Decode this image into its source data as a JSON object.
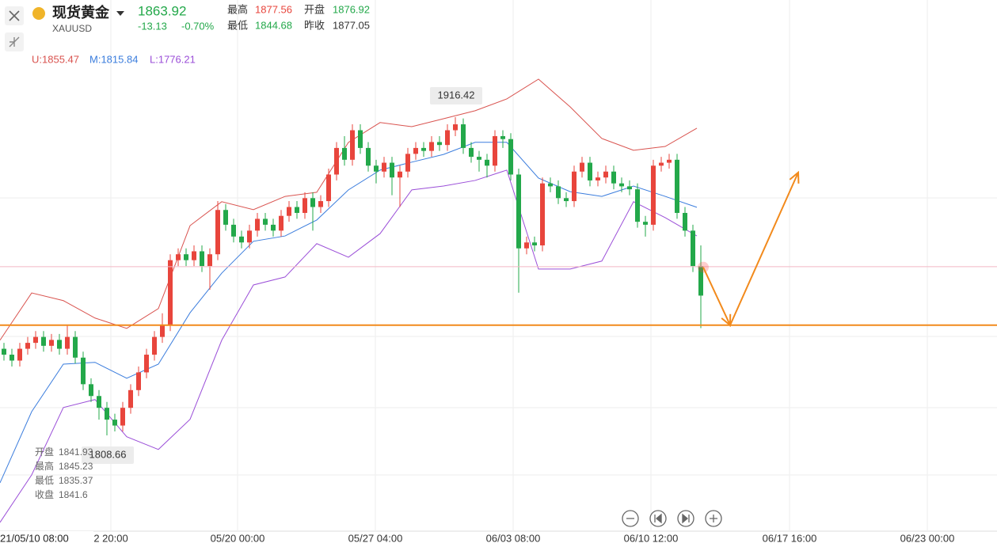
{
  "header": {
    "title": "现货黄金",
    "symbol": "XAUUSD",
    "price": 1863.92,
    "change": -13.13,
    "change_pct": {
      "value": -0.7,
      "label": "-0.70%"
    },
    "stats": [
      {
        "label": "最高",
        "value": 1877.56
      },
      {
        "label": "开盘",
        "value": 1876.92
      },
      {
        "label": "最低",
        "value": 1844.68
      },
      {
        "label": "昨收",
        "value": 1877.05
      }
    ]
  },
  "tooltip": [
    {
      "label": "开盘",
      "value": 1841.93
    },
    {
      "label": "最高",
      "value": 1845.23
    },
    {
      "label": "最低",
      "value": 1835.37
    },
    {
      "label": "收盘",
      "value": 1841.6
    }
  ],
  "chart_data": {
    "type": "candlestick",
    "up_color": "#e8453c",
    "down_color": "#23a84a",
    "xlim": [
      0,
      125.9
    ],
    "ylim": [
      1776.5,
      1956.1
    ],
    "crosshair_time": "21/05/10 08:00",
    "xticks": [
      {
        "value": 14,
        "label": "2 20:00"
      },
      {
        "value": 30,
        "label": "05/20 00:00"
      },
      {
        "value": 47.4,
        "label": "05/27 04:00"
      },
      {
        "value": 64.8,
        "label": "06/03 08:00"
      },
      {
        "value": 82.2,
        "label": "06/10 12:00"
      },
      {
        "value": 99.7,
        "label": "06/17 16:00"
      },
      {
        "value": 117.1,
        "label": "06/23 00:00"
      }
    ],
    "open": [
      1838,
      1836,
      1834,
      1838,
      1840,
      1842,
      1839,
      1841,
      1838,
      1842,
      1835,
      1826,
      1822,
      1818,
      1814,
      1812,
      1818,
      1824,
      1830,
      1836,
      1842,
      1846,
      1868,
      1870,
      1868,
      1871,
      1866,
      1870,
      1885,
      1880,
      1876,
      1874,
      1878,
      1882,
      1880,
      1878,
      1883,
      1886,
      1884,
      1889,
      1886,
      1888,
      1897,
      1906,
      1902,
      1912,
      1906,
      1900,
      1898,
      1901,
      1896,
      1898,
      1904,
      1906,
      1905,
      1908,
      1907,
      1912,
      1914,
      1906,
      1903,
      1902,
      1900,
      1910,
      1909,
      1897,
      1872,
      1874,
      1873,
      1894,
      1893,
      1889,
      1888,
      1898,
      1901,
      1895,
      1896,
      1898,
      1894,
      1893,
      1892,
      1881,
      1880,
      1900,
      1901,
      1902,
      1884,
      1878,
      1866
    ],
    "high": [
      1840,
      1838,
      1840,
      1842,
      1844,
      1844,
      1843,
      1843,
      1846,
      1844,
      1837,
      1828,
      1824,
      1820,
      1816,
      1820,
      1826,
      1832,
      1838,
      1844,
      1850,
      1870,
      1872,
      1872,
      1873,
      1873,
      1872,
      1888,
      1887,
      1882,
      1878,
      1880,
      1884,
      1884,
      1882,
      1885,
      1888,
      1888,
      1891,
      1891,
      1890,
      1899,
      1908,
      1910,
      1914,
      1914,
      1908,
      1902,
      1903,
      1903,
      1900,
      1906,
      1908,
      1908,
      1910,
      1910,
      1914,
      1916.42,
      1916,
      1908,
      1905,
      1904,
      1912,
      1912,
      1911,
      1899,
      1876,
      1876,
      1896,
      1896,
      1895,
      1891,
      1900,
      1903,
      1903,
      1898,
      1900,
      1900,
      1896,
      1895,
      1894,
      1883,
      1902,
      1903,
      1904,
      1904,
      1886,
      1880,
      1873
    ],
    "low": [
      1834,
      1832,
      1832,
      1836,
      1838,
      1837,
      1837,
      1836,
      1836,
      1833,
      1824,
      1820,
      1814,
      1808.66,
      1810,
      1810,
      1816,
      1822,
      1828,
      1834,
      1840,
      1844,
      1866,
      1866,
      1866,
      1864,
      1858,
      1868,
      1878,
      1874,
      1872,
      1872,
      1876,
      1878,
      1876,
      1876,
      1881,
      1882,
      1882,
      1878,
      1884,
      1886,
      1895,
      1900,
      1900,
      1904,
      1898,
      1894,
      1896,
      1890,
      1886,
      1896,
      1902,
      1903,
      1903,
      1905,
      1905,
      1910,
      1904,
      1901,
      1898,
      1896,
      1898,
      1906,
      1895,
      1857,
      1870,
      1871,
      1871,
      1891,
      1887,
      1886,
      1886,
      1896,
      1893,
      1893,
      1894,
      1892,
      1891,
      1890,
      1879,
      1876,
      1878,
      1898,
      1899,
      1882,
      1876,
      1864,
      1845
    ],
    "close": [
      1836,
      1834,
      1838,
      1840,
      1842,
      1839,
      1841,
      1838,
      1842,
      1835,
      1826,
      1822,
      1818,
      1814,
      1812,
      1818,
      1824,
      1830,
      1836,
      1842,
      1846,
      1868,
      1870,
      1868,
      1871,
      1866,
      1870,
      1885,
      1880,
      1876,
      1874,
      1878,
      1882,
      1880,
      1878,
      1883,
      1886,
      1884,
      1889,
      1886,
      1888,
      1897,
      1906,
      1902,
      1912,
      1906,
      1900,
      1898,
      1901,
      1896,
      1898,
      1904,
      1906,
      1905,
      1908,
      1907,
      1912,
      1914,
      1906,
      1903,
      1902,
      1900,
      1910,
      1909,
      1897,
      1872,
      1874,
      1873,
      1894,
      1893,
      1889,
      1888,
      1898,
      1901,
      1895,
      1896,
      1898,
      1894,
      1893,
      1892,
      1881,
      1880,
      1900,
      1901,
      1902,
      1884,
      1878,
      1866,
      1856
    ],
    "bands": {
      "x": [
        0,
        4,
        8,
        12,
        16,
        20,
        24,
        28,
        32,
        36,
        40,
        44,
        48,
        52,
        56,
        60,
        64,
        68,
        72,
        76,
        80,
        84,
        88
      ],
      "series": [
        {
          "name": "U:1855.47",
          "color": "#d9534f",
          "values": [
            1840.9,
            1856.9,
            1854.3,
            1848.4,
            1844.9,
            1851.6,
            1879.7,
            1887.8,
            1885.1,
            1889.6,
            1891.0,
            1907.9,
            1914.6,
            1913.2,
            1915.9,
            1918.6,
            1922.6,
            1929.3,
            1919.9,
            1909.2,
            1905.2,
            1906.5,
            1912.7
          ]
        },
        {
          "name": "M:1815.84",
          "color": "#3b7ddd",
          "values": [
            1792.6,
            1816.7,
            1832.8,
            1833.4,
            1828.0,
            1832.8,
            1850.2,
            1863.6,
            1874.4,
            1876.2,
            1881.6,
            1891.8,
            1898.5,
            1901.2,
            1903.8,
            1907.9,
            1907.9,
            1895.8,
            1891.2,
            1889.6,
            1893.1,
            1889.6,
            1885.9
          ]
        },
        {
          "name": "L:1776.21",
          "color": "#9b4fd8",
          "values": [
            1779.2,
            1795.3,
            1818.1,
            1820.8,
            1808.2,
            1803.9,
            1814.1,
            1840.9,
            1859.6,
            1862.3,
            1873.6,
            1869.0,
            1877.0,
            1891.8,
            1893.1,
            1895.0,
            1898.5,
            1865.0,
            1865.0,
            1867.7,
            1887.8,
            1882.4,
            1876.2
          ]
        }
      ]
    },
    "support_level": 1846,
    "price_line": 1865.8,
    "arrow": {
      "color": "#f28a1c",
      "x": [
        88.8,
        92.2,
        100.8
      ],
      "y": [
        1865.6,
        1846,
        1897.7
      ]
    }
  }
}
